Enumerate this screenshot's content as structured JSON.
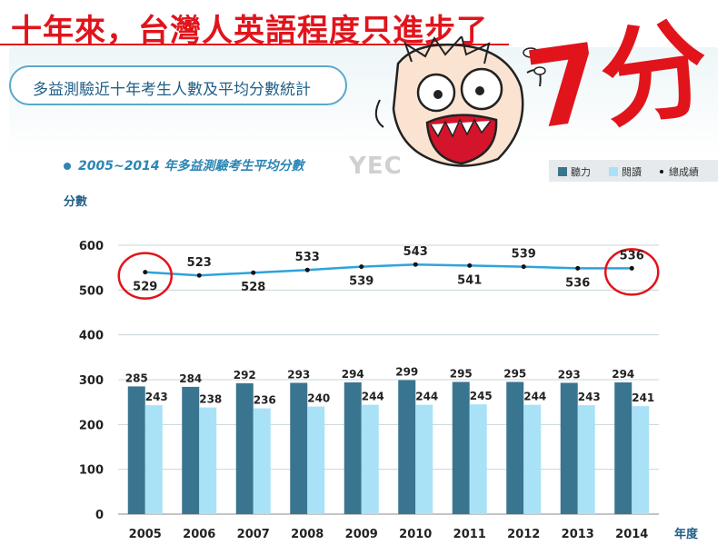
{
  "headline": "十年來，台灣人英語程度只進步了",
  "callout": "7分",
  "subtitle": "多益測驗近十年考生人數及平均分數統計",
  "watermark": "YEC",
  "colors": {
    "headline": "#e1141b",
    "listening": "#3a7590",
    "reading": "#a9e2f6",
    "total_line": "#2ea3dc",
    "highlight": "#e1141b"
  },
  "chart_data": {
    "type": "bar",
    "title": "2005~2014 年多益測驗考生平均分數",
    "xlabel": "年度",
    "ylabel": "分數",
    "ylim": [
      0,
      600
    ],
    "yticks": [
      0,
      100,
      200,
      300,
      400,
      500,
      600
    ],
    "grid": true,
    "legend_position": "top-right",
    "categories": [
      "2005",
      "2006",
      "2007",
      "2008",
      "2009",
      "2010",
      "2011",
      "2012",
      "2013",
      "2014"
    ],
    "series": [
      {
        "name": "聽力",
        "type": "bar",
        "values": [
          285,
          284,
          292,
          293,
          294,
          299,
          295,
          295,
          293,
          294
        ]
      },
      {
        "name": "閱讀",
        "type": "bar",
        "values": [
          243,
          238,
          236,
          240,
          244,
          244,
          245,
          244,
          243,
          241
        ]
      },
      {
        "name": "總成績",
        "type": "line",
        "values": [
          529,
          523,
          528,
          533,
          539,
          543,
          541,
          539,
          536,
          536
        ]
      }
    ],
    "highlighted_years": [
      "2005",
      "2014"
    ]
  }
}
